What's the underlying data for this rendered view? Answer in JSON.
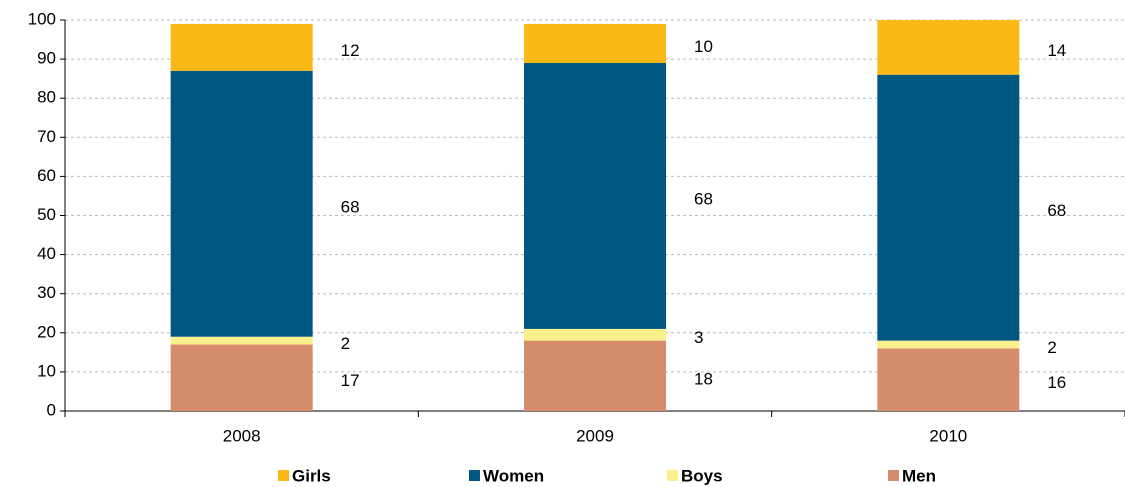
{
  "chart_data": {
    "type": "stacked_bar",
    "categories": [
      "2008",
      "2009",
      "2010"
    ],
    "series": [
      {
        "name": "Girls",
        "color": "#fbb917",
        "values": [
          12,
          10,
          14
        ]
      },
      {
        "name": "Women",
        "color": "#005782",
        "values": [
          68,
          68,
          68
        ]
      },
      {
        "name": "Boys",
        "color": "#fbf08c",
        "values": [
          2,
          3,
          2
        ]
      },
      {
        "name": "Men",
        "color": "#d58c6c",
        "values": [
          17,
          18,
          16
        ]
      }
    ],
    "ylim": [
      0,
      100
    ],
    "yticks": [
      0,
      10,
      20,
      30,
      40,
      50,
      60,
      70,
      80,
      90,
      100
    ],
    "grid": true,
    "legend": "bottom"
  }
}
